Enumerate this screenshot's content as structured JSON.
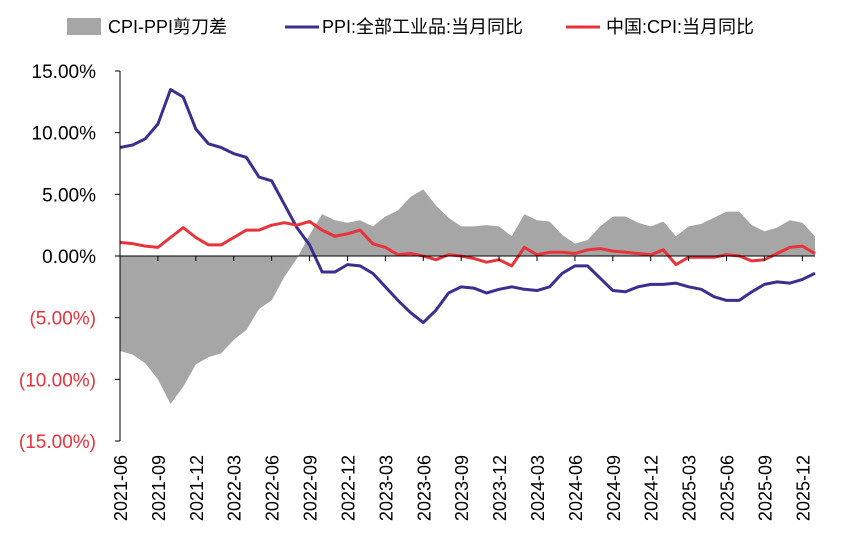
{
  "chart_data": {
    "type": "line",
    "title": "",
    "xlabel": "",
    "ylabel": "",
    "ylim": [
      -15,
      15
    ],
    "y_ticks": [
      15,
      10,
      5,
      0,
      -5,
      -10,
      -15
    ],
    "y_tick_labels": [
      "15.00%",
      "10.00%",
      "5.00%",
      "0.00%",
      "(5.00%)",
      "(10.00%)",
      "(15.00%)"
    ],
    "x_tick_labels": [
      "2021-06",
      "2021-09",
      "2021-12",
      "2022-03",
      "2022-06",
      "2022-09",
      "2022-12",
      "2023-03",
      "2023-06",
      "2023-09",
      "2023-12",
      "2024-03",
      "2024-06",
      "2024-09",
      "2024-12",
      "2025-03",
      "2025-06",
      "2025-09",
      "2025-12"
    ],
    "legend": {
      "placement": "top"
    },
    "colors": {
      "spread": "#a6a6a6",
      "ppi": "#3b2f8f",
      "cpi": "#e8323c",
      "negative_label": "#e8323c",
      "axis": "#000000"
    },
    "categories": [
      "2021-06",
      "2021-07",
      "2021-08",
      "2021-09",
      "2021-10",
      "2021-11",
      "2021-12",
      "2022-01",
      "2022-02",
      "2022-03",
      "2022-04",
      "2022-05",
      "2022-06",
      "2022-07",
      "2022-08",
      "2022-09",
      "2022-10",
      "2022-11",
      "2022-12",
      "2023-01",
      "2023-02",
      "2023-03",
      "2023-04",
      "2023-05",
      "2023-06",
      "2023-07",
      "2023-08",
      "2023-09",
      "2023-10",
      "2023-11",
      "2023-12",
      "2024-01",
      "2024-02",
      "2024-03",
      "2024-04",
      "2024-05",
      "2024-06",
      "2024-07",
      "2024-08",
      "2024-09",
      "2024-10",
      "2024-11",
      "2024-12",
      "2025-01",
      "2025-02",
      "2025-03",
      "2025-04",
      "2025-05",
      "2025-06",
      "2025-07",
      "2025-08",
      "2025-09",
      "2025-10",
      "2025-11",
      "2025-12",
      "2026-01"
    ],
    "series": [
      {
        "name": "CPI-PPI剪刀差",
        "kind": "area",
        "values": [
          -7.7,
          -8.0,
          -8.7,
          -10.0,
          -12.0,
          -10.6,
          -8.8,
          -8.2,
          -7.9,
          -6.8,
          -6.0,
          -4.3,
          -3.6,
          -1.7,
          -0.2,
          1.7,
          3.4,
          2.9,
          2.7,
          2.9,
          2.4,
          3.2,
          3.7,
          4.8,
          5.4,
          4.1,
          3.1,
          2.4,
          2.4,
          2.5,
          2.4,
          1.6,
          3.4,
          2.9,
          2.8,
          1.7,
          1.0,
          1.3,
          2.4,
          3.2,
          3.2,
          2.7,
          2.4,
          2.8,
          1.6,
          2.4,
          2.6,
          3.1,
          3.6,
          3.6,
          2.5,
          2.0,
          2.3,
          2.9,
          2.7,
          1.6
        ]
      },
      {
        "name": "PPI:全部工业品:当月同比",
        "kind": "line",
        "values": [
          8.8,
          9.0,
          9.5,
          10.7,
          13.5,
          12.9,
          10.3,
          9.1,
          8.8,
          8.3,
          8.0,
          6.4,
          6.1,
          4.2,
          2.3,
          0.9,
          -1.3,
          -1.3,
          -0.7,
          -0.8,
          -1.4,
          -2.5,
          -3.6,
          -4.6,
          -5.4,
          -4.4,
          -3.0,
          -2.5,
          -2.6,
          -3.0,
          -2.7,
          -2.5,
          -2.7,
          -2.8,
          -2.5,
          -1.4,
          -0.8,
          -0.8,
          -1.8,
          -2.8,
          -2.9,
          -2.5,
          -2.3,
          -2.3,
          -2.2,
          -2.5,
          -2.7,
          -3.3,
          -3.6,
          -3.6,
          -2.9,
          -2.3,
          -2.1,
          -2.2,
          -1.9,
          -1.4
        ]
      },
      {
        "name": "中国:CPI:当月同比",
        "kind": "line",
        "values": [
          1.1,
          1.0,
          0.8,
          0.7,
          1.5,
          2.3,
          1.5,
          0.9,
          0.9,
          1.5,
          2.1,
          2.1,
          2.5,
          2.7,
          2.5,
          2.8,
          2.1,
          1.6,
          1.8,
          2.1,
          1.0,
          0.7,
          0.1,
          0.2,
          0.0,
          -0.3,
          0.1,
          0.0,
          -0.2,
          -0.5,
          -0.3,
          -0.8,
          0.7,
          0.1,
          0.3,
          0.3,
          0.2,
          0.5,
          0.6,
          0.4,
          0.3,
          0.2,
          0.1,
          0.5,
          -0.7,
          -0.1,
          -0.1,
          -0.1,
          0.1,
          0.0,
          -0.4,
          -0.3,
          0.2,
          0.7,
          0.8,
          0.2
        ]
      }
    ]
  }
}
